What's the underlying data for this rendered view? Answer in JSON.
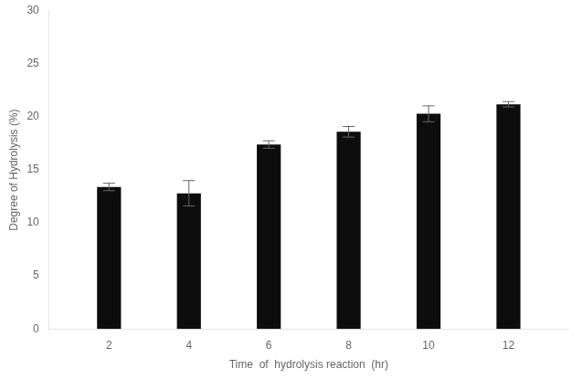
{
  "chart_data": {
    "type": "bar",
    "x": [
      2,
      4,
      6,
      8,
      10,
      12
    ],
    "values": [
      13.4,
      12.8,
      17.4,
      18.6,
      20.3,
      21.2
    ],
    "errors": [
      0.35,
      1.2,
      0.35,
      0.5,
      0.75,
      0.25
    ],
    "color": "#0d0d0d",
    "xlabel": "Time  of  hydrolysis reaction  (hr)",
    "ylabel": "Degree of Hydrolysis (%)",
    "xlim": [
      0.5,
      13.5
    ],
    "xticks": [
      2,
      4,
      6,
      8,
      10,
      12
    ],
    "ylim": [
      0,
      30
    ],
    "yticks": [
      0,
      5,
      10,
      15,
      20,
      25,
      30
    ],
    "grid": false
  }
}
